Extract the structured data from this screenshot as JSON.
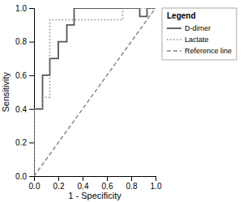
{
  "chart_data": {
    "type": "line",
    "xlabel": "1 - Specificity",
    "ylabel": "Sensitivity",
    "legend_title": "Legend",
    "legend": "right",
    "grid": false,
    "xlim": [
      0.0,
      1.0
    ],
    "ylim": [
      0.0,
      1.0
    ],
    "xticks": [
      {
        "value": 0.0,
        "label": "0.0"
      },
      0.2,
      0.4,
      0.6,
      0.8,
      {
        "value": 1.0,
        "label": "1.0"
      }
    ],
    "yticks": [
      {
        "value": 0.0,
        "label": "0.0"
      },
      0.2,
      0.4,
      0.6,
      0.8,
      {
        "value": 1.0,
        "label": "1.0"
      }
    ],
    "series": [
      {
        "name": "D-dimer",
        "color": "#555555",
        "line_style": "solid",
        "x": [
          0.0,
          0.0,
          0.07,
          0.07,
          0.13,
          0.13,
          0.2,
          0.2,
          0.27,
          0.27,
          0.33,
          0.33,
          0.87,
          0.87,
          0.93,
          0.93,
          1.0,
          1.0
        ],
        "values": [
          0.0,
          0.4,
          0.4,
          0.6,
          0.6,
          0.7,
          0.7,
          0.8,
          0.8,
          0.9,
          0.9,
          1.0,
          1.0,
          0.95,
          0.95,
          1.0,
          1.0,
          1.0
        ]
      },
      {
        "name": "Lactate",
        "color": "#888888",
        "line_style": "dotted",
        "x": [
          0.0,
          0.0,
          0.07,
          0.07,
          0.13,
          0.13,
          0.27,
          0.27,
          0.33,
          0.33,
          0.4,
          0.4,
          0.73,
          0.73,
          0.87,
          0.87,
          1.0
        ],
        "values": [
          0.0,
          0.4,
          0.4,
          0.47,
          0.47,
          0.93,
          0.93,
          0.93,
          0.93,
          0.93,
          0.93,
          0.93,
          0.93,
          1.0,
          1.0,
          1.0,
          1.0
        ]
      },
      {
        "name": "Reference line",
        "color": "#888888",
        "line_style": "dashed",
        "x": [
          0.0,
          1.0
        ],
        "values": [
          0.0,
          1.0
        ]
      }
    ]
  }
}
